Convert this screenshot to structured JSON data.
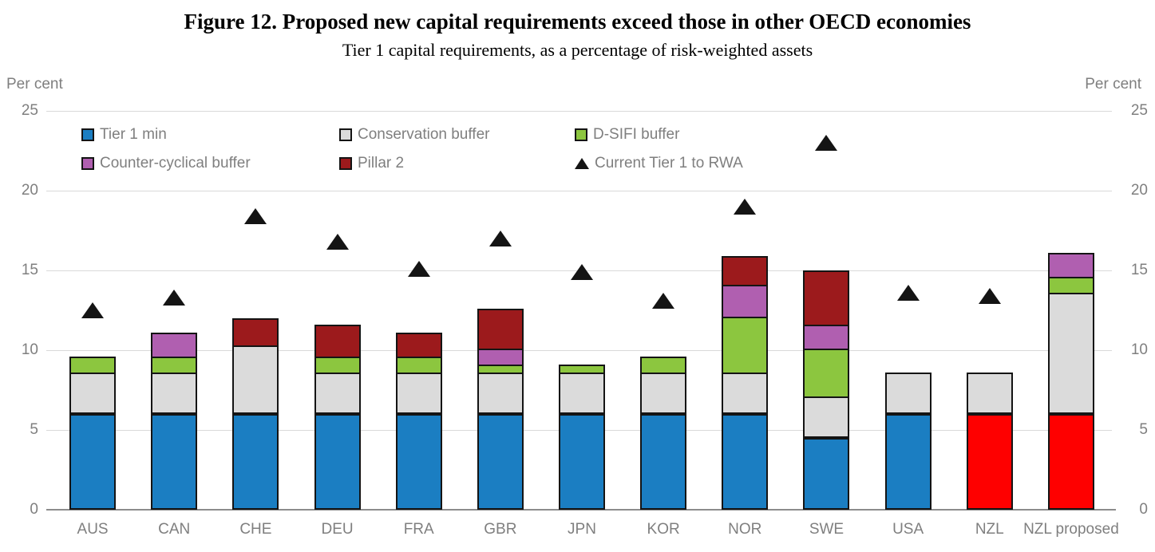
{
  "title": "Figure 12. Proposed new capital requirements exceed those in other OECD economies",
  "subtitle": "Tier 1 capital requirements, as a percentage of risk-weighted assets",
  "axis": {
    "left_unit_label": "Per cent",
    "right_unit_label": "Per cent",
    "yticks": [
      0,
      5,
      10,
      15,
      20,
      25
    ],
    "ylim": [
      0,
      25
    ]
  },
  "legend": {
    "rows": [
      [
        {
          "label": "Tier 1 min",
          "marker": "square",
          "color": "#1b7ec2"
        },
        {
          "label": "Conservation buffer",
          "marker": "square",
          "color": "#dbdbdb"
        },
        {
          "label": "D-SIFI buffer",
          "marker": "square",
          "color": "#8cc63f"
        }
      ],
      [
        {
          "label": "Counter-cyclical buffer",
          "marker": "square",
          "color": "#b05fb0"
        },
        {
          "label": "Pillar 2",
          "marker": "square",
          "color": "#9c1a1c"
        },
        {
          "label": "Current Tier 1 to RWA",
          "marker": "triangle",
          "color": "#141414"
        }
      ]
    ]
  },
  "chart_data": {
    "type": "bar",
    "stacked": true,
    "grid": true,
    "legend_position": "top-left-inside",
    "title": "Figure 12. Proposed new capital requirements exceed those in other OECD economies",
    "subtitle": "Tier 1 capital requirements, as a percentage of risk-weighted assets",
    "ylabel": "Per cent",
    "ylim": [
      0,
      25
    ],
    "categories": [
      "AUS",
      "CAN",
      "CHE",
      "DEU",
      "FRA",
      "GBR",
      "JPN",
      "KOR",
      "NOR",
      "SWE",
      "USA",
      "NZL",
      "NZL proposed"
    ],
    "series": [
      {
        "name": "Tier 1 min",
        "color": "#1b7ec2",
        "values": [
          6,
          6,
          6,
          6,
          6,
          6,
          6,
          6,
          6,
          4.5,
          6,
          6,
          6
        ]
      },
      {
        "name": "Conservation buffer",
        "color": "#dbdbdb",
        "values": [
          2.5,
          2.5,
          4.2,
          2.5,
          2.5,
          2.5,
          2.5,
          2.5,
          2.5,
          2.5,
          2.5,
          2.5,
          7.5
        ]
      },
      {
        "name": "D-SIFI buffer",
        "color": "#8cc63f",
        "values": [
          1,
          1,
          0,
          1,
          1,
          0.5,
          0.5,
          1,
          3.5,
          3,
          0,
          0,
          1
        ]
      },
      {
        "name": "Counter-cyclical buffer",
        "color": "#b05fb0",
        "values": [
          0,
          1.5,
          0,
          0,
          0,
          1,
          0,
          0,
          2,
          1.5,
          0,
          0,
          1.5
        ]
      },
      {
        "name": "Pillar 2",
        "color": "#9c1a1c",
        "values": [
          0,
          0,
          1.7,
          2,
          1.5,
          2.5,
          0,
          0,
          1.8,
          3.4,
          0,
          0,
          0
        ]
      }
    ],
    "scatter_series": {
      "name": "Current Tier 1 to RWA",
      "marker": "triangle",
      "color": "#141414",
      "values": [
        12.5,
        13.3,
        18.4,
        16.8,
        15.1,
        17.0,
        14.9,
        13.1,
        19.0,
        23.0,
        13.6,
        13.4,
        null
      ]
    },
    "tier1_color_override": {
      "NZL": "#fe0000",
      "NZL proposed": "#fe0000"
    }
  }
}
